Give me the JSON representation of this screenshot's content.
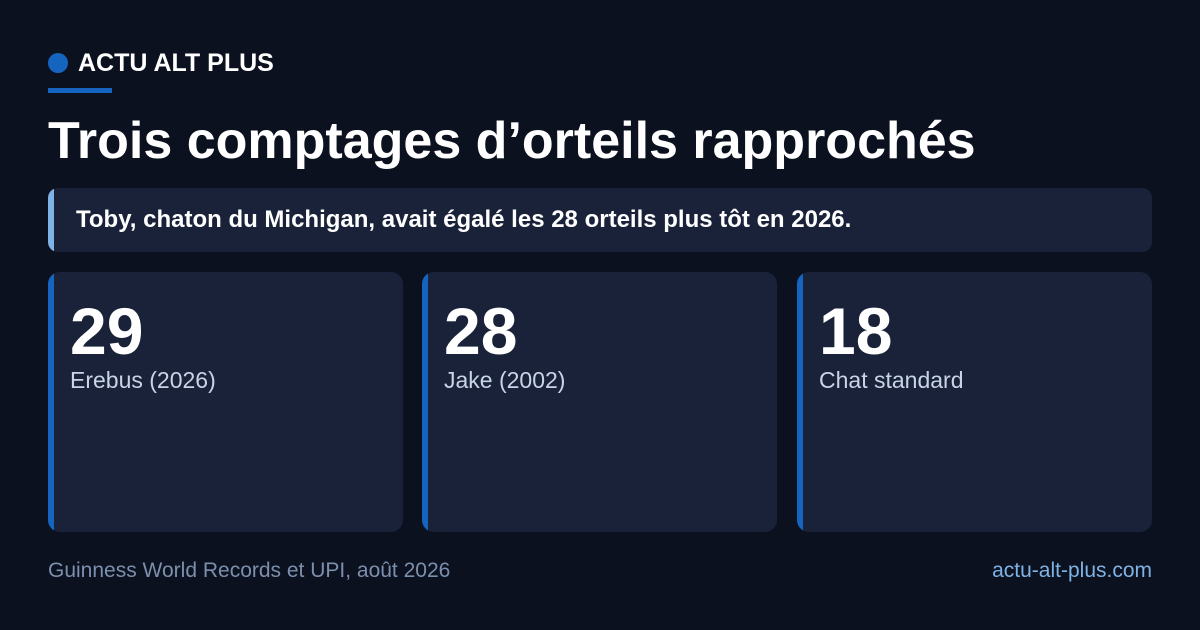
{
  "brand": {
    "name": "ACTU ALT PLUS",
    "accent_color": "#1565c0"
  },
  "headline": "Trois comptages d’orteils rapprochés",
  "subhead": "Toby, chaton du Michigan, avait égalé les 28 orteils plus tôt en 2026.",
  "stats": [
    {
      "value": "29",
      "label": "Erebus (2026)"
    },
    {
      "value": "28",
      "label": "Jake (2002)"
    },
    {
      "value": "18",
      "label": "Chat standard"
    }
  ],
  "footer": {
    "source": "Guinness World Records et UPI, août 2026",
    "url": "actu-alt-plus.com"
  }
}
